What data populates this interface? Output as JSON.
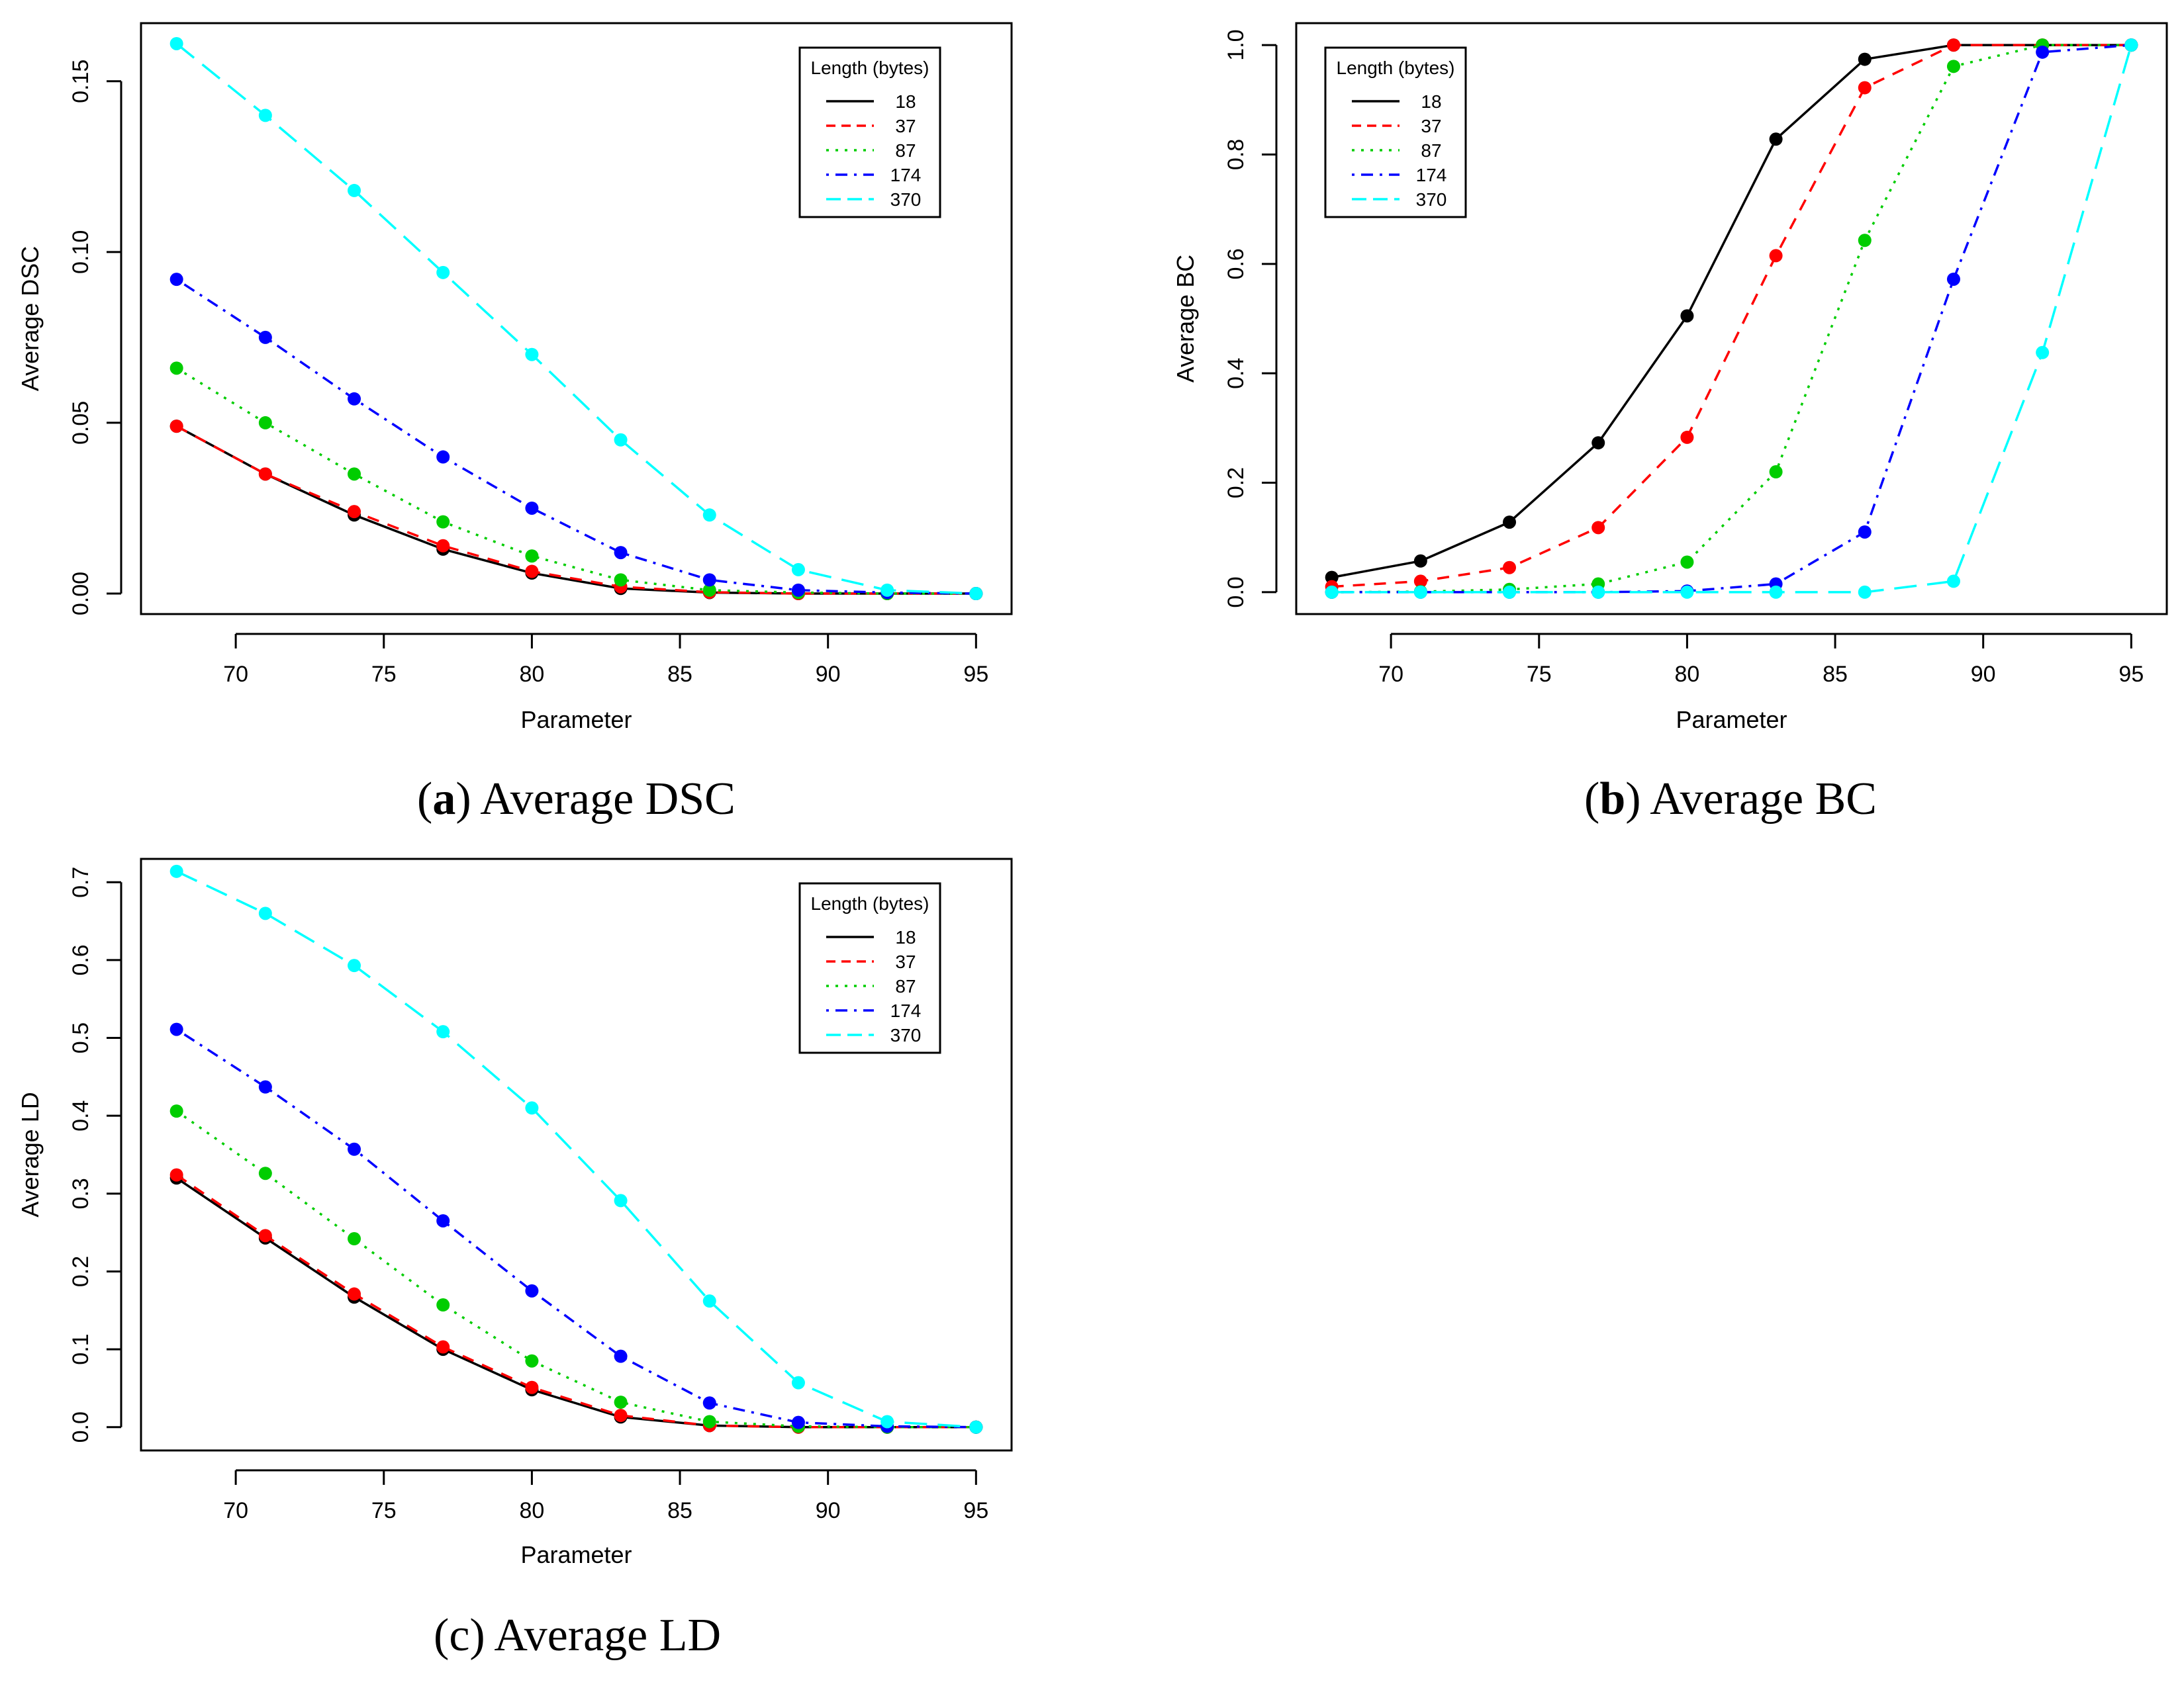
{
  "chart_data": [
    {
      "id": "a",
      "type": "line",
      "caption_letter": "a",
      "caption_text": "Average DSC",
      "xlabel": "Parameter",
      "ylabel": "Average DSC",
      "xlim": [
        66.8,
        96.2
      ],
      "ylim": [
        -0.006,
        0.167
      ],
      "xticks": [
        70,
        75,
        80,
        85,
        90,
        95
      ],
      "yticks": [
        0.0,
        0.05,
        0.1,
        0.15
      ],
      "ytick_labels": [
        "0.00",
        "0.05",
        "0.10",
        "0.15"
      ],
      "x": [
        68,
        71,
        74,
        77,
        80,
        83,
        86,
        89,
        92,
        95
      ],
      "legend_title": "Length (bytes)",
      "legend_position": "top-right",
      "series": [
        {
          "name": "18",
          "color": "#000000",
          "dash": "solid",
          "values": [
            0.049,
            0.035,
            0.023,
            0.013,
            0.006,
            0.0015,
            0.0003,
            0.0,
            0.0,
            0.0
          ]
        },
        {
          "name": "37",
          "color": "#ff0000",
          "dash": "dashed",
          "values": [
            0.049,
            0.035,
            0.024,
            0.014,
            0.0065,
            0.002,
            0.0004,
            0.0,
            0.0,
            0.0
          ]
        },
        {
          "name": "87",
          "color": "#00cd00",
          "dash": "dotted",
          "values": [
            0.066,
            0.05,
            0.035,
            0.021,
            0.011,
            0.004,
            0.001,
            0.0003,
            0.0,
            0.0
          ]
        },
        {
          "name": "174",
          "color": "#0000ff",
          "dash": "dotdash",
          "values": [
            0.092,
            0.075,
            0.057,
            0.04,
            0.025,
            0.012,
            0.004,
            0.001,
            0.0003,
            0.0
          ]
        },
        {
          "name": "370",
          "color": "#00ffff",
          "dash": "longdash",
          "values": [
            0.161,
            0.14,
            0.118,
            0.094,
            0.07,
            0.045,
            0.023,
            0.007,
            0.001,
            0.0
          ]
        }
      ]
    },
    {
      "id": "b",
      "type": "line",
      "caption_letter": "b",
      "caption_text": "Average BC",
      "xlabel": "Parameter",
      "ylabel": "Average BC",
      "xlim": [
        66.8,
        96.2
      ],
      "ylim": [
        -0.04,
        1.04
      ],
      "xticks": [
        70,
        75,
        80,
        85,
        90,
        95
      ],
      "yticks": [
        0.0,
        0.2,
        0.4,
        0.6,
        0.8,
        1.0
      ],
      "ytick_labels": [
        "0.0",
        "0.2",
        "0.4",
        "0.6",
        "0.8",
        "1.0"
      ],
      "x": [
        68,
        71,
        74,
        77,
        80,
        83,
        86,
        89,
        92,
        95
      ],
      "legend_title": "Length (bytes)",
      "legend_position": "top-left",
      "series": [
        {
          "name": "18",
          "color": "#000000",
          "dash": "solid",
          "values": [
            0.027,
            0.057,
            0.128,
            0.273,
            0.505,
            0.828,
            0.974,
            1.0,
            1.0,
            1.0
          ]
        },
        {
          "name": "37",
          "color": "#ff0000",
          "dash": "dashed",
          "values": [
            0.01,
            0.02,
            0.045,
            0.118,
            0.283,
            0.615,
            0.922,
            1.0,
            1.0,
            1.0
          ]
        },
        {
          "name": "87",
          "color": "#00cd00",
          "dash": "dotted",
          "values": [
            0.0,
            0.001,
            0.005,
            0.015,
            0.055,
            0.22,
            0.643,
            0.961,
            1.0,
            1.0
          ]
        },
        {
          "name": "174",
          "color": "#0000ff",
          "dash": "dotdash",
          "values": [
            0.0,
            0.0,
            0.0,
            0.0,
            0.002,
            0.015,
            0.11,
            0.572,
            0.987,
            1.0
          ]
        },
        {
          "name": "370",
          "color": "#00ffff",
          "dash": "longdash",
          "values": [
            0.0,
            0.0,
            0.0,
            0.0,
            0.0,
            0.0,
            0.0,
            0.02,
            0.438,
            1.0
          ]
        }
      ]
    },
    {
      "id": "c",
      "type": "line",
      "caption_letter": "c",
      "caption_text": "Average LD",
      "xlabel": "Parameter",
      "ylabel": "Average LD",
      "xlim": [
        66.8,
        96.2
      ],
      "ylim": [
        -0.03,
        0.73
      ],
      "xticks": [
        70,
        75,
        80,
        85,
        90,
        95
      ],
      "yticks": [
        0.0,
        0.1,
        0.2,
        0.3,
        0.4,
        0.5,
        0.6,
        0.7
      ],
      "ytick_labels": [
        "0.0",
        "0.1",
        "0.2",
        "0.3",
        "0.4",
        "0.5",
        "0.6",
        "0.7"
      ],
      "x": [
        68,
        71,
        74,
        77,
        80,
        83,
        86,
        89,
        92,
        95
      ],
      "legend_title": "Length (bytes)",
      "legend_position": "top-right",
      "series": [
        {
          "name": "18",
          "color": "#000000",
          "dash": "solid",
          "values": [
            0.32,
            0.243,
            0.167,
            0.1,
            0.048,
            0.013,
            0.002,
            0.0,
            0.0,
            0.0
          ]
        },
        {
          "name": "37",
          "color": "#ff0000",
          "dash": "dashed",
          "values": [
            0.324,
            0.246,
            0.171,
            0.103,
            0.051,
            0.015,
            0.002,
            0.0,
            0.0,
            0.0
          ]
        },
        {
          "name": "87",
          "color": "#00cd00",
          "dash": "dotted",
          "values": [
            0.406,
            0.326,
            0.242,
            0.157,
            0.085,
            0.032,
            0.007,
            0.001,
            0.0,
            0.0
          ]
        },
        {
          "name": "174",
          "color": "#0000ff",
          "dash": "dotdash",
          "values": [
            0.511,
            0.437,
            0.357,
            0.265,
            0.175,
            0.091,
            0.031,
            0.006,
            0.001,
            0.0
          ]
        },
        {
          "name": "370",
          "color": "#00ffff",
          "dash": "longdash",
          "values": [
            0.714,
            0.66,
            0.593,
            0.508,
            0.41,
            0.291,
            0.162,
            0.057,
            0.007,
            0.0
          ]
        }
      ]
    }
  ]
}
